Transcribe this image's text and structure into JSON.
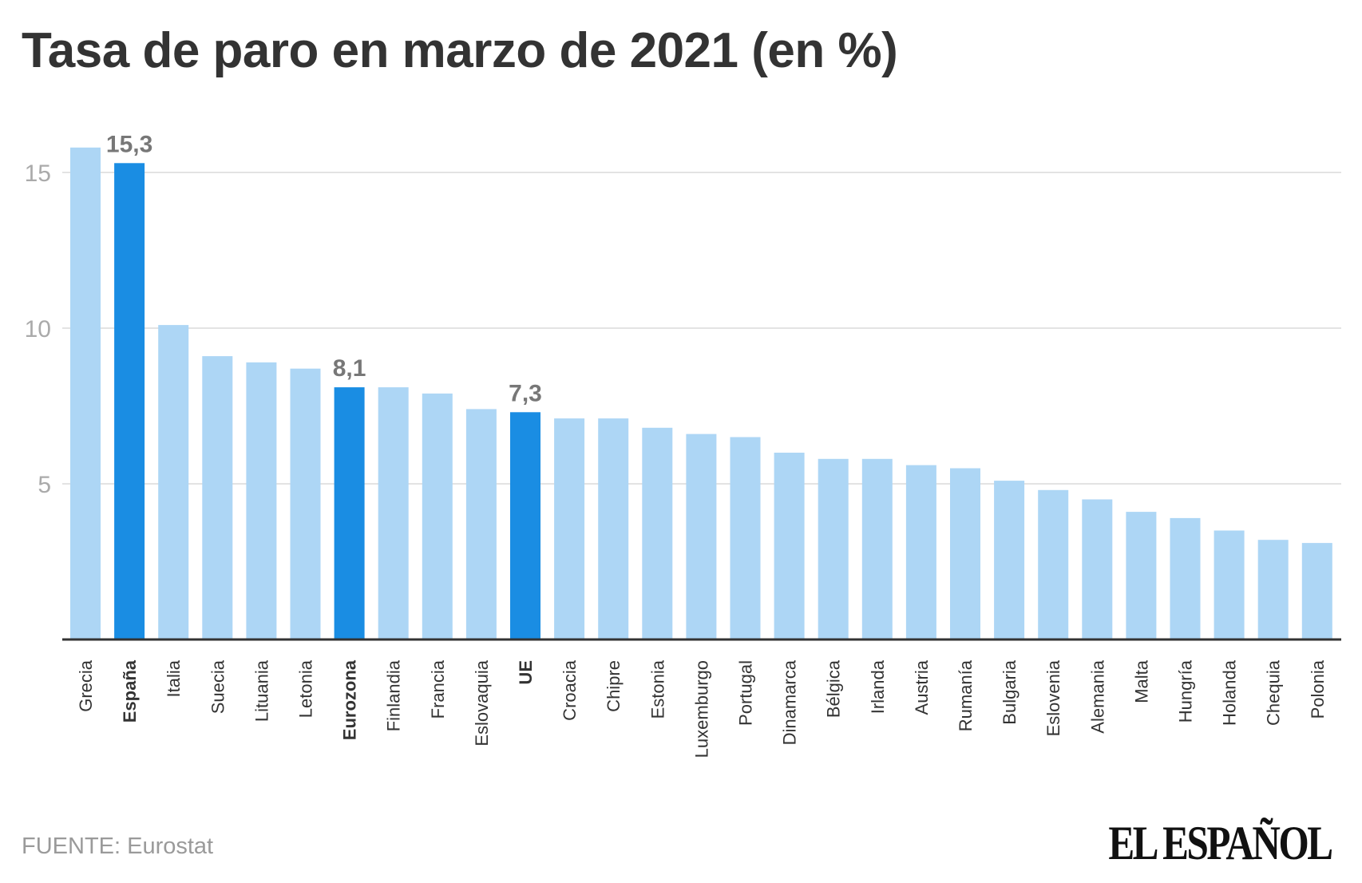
{
  "chart_data": {
    "type": "bar",
    "title": "Tasa de paro en marzo de 2021 (en %)",
    "xlabel": "",
    "ylabel": "",
    "ylim": [
      0,
      16
    ],
    "yticks": [
      5,
      10,
      15
    ],
    "grid": true,
    "categories": [
      "Grecia",
      "España",
      "Italia",
      "Suecia",
      "Lituania",
      "Letonia",
      "Eurozona",
      "Finlandia",
      "Francia",
      "Eslovaquia",
      "UE",
      "Croacia",
      "Chipre",
      "Estonia",
      "Luxemburgo",
      "Portugal",
      "Dinamarca",
      "Bélgica",
      "Irlanda",
      "Austria",
      "Rumanía",
      "Bulgaria",
      "Eslovenia",
      "Alemania",
      "Malta",
      "Hungría",
      "Holanda",
      "Chequia",
      "Polonia"
    ],
    "values": [
      15.8,
      15.3,
      10.1,
      9.1,
      8.9,
      8.7,
      8.1,
      8.1,
      7.9,
      7.4,
      7.3,
      7.1,
      7.1,
      6.8,
      6.6,
      6.5,
      6.0,
      5.8,
      5.8,
      5.6,
      5.5,
      5.1,
      4.8,
      4.5,
      4.1,
      3.9,
      3.5,
      3.2,
      3.1
    ],
    "highlighted": [
      "España",
      "Eurozona",
      "UE"
    ],
    "data_labels": {
      "España": "15,3",
      "Eurozona": "8,1",
      "UE": "7,3"
    },
    "colors": {
      "default": "#add6f5",
      "highlight": "#1a8de3"
    }
  },
  "footer": {
    "source": "FUENTE: Eurostat",
    "logo": "EL ESPAÑOL"
  }
}
